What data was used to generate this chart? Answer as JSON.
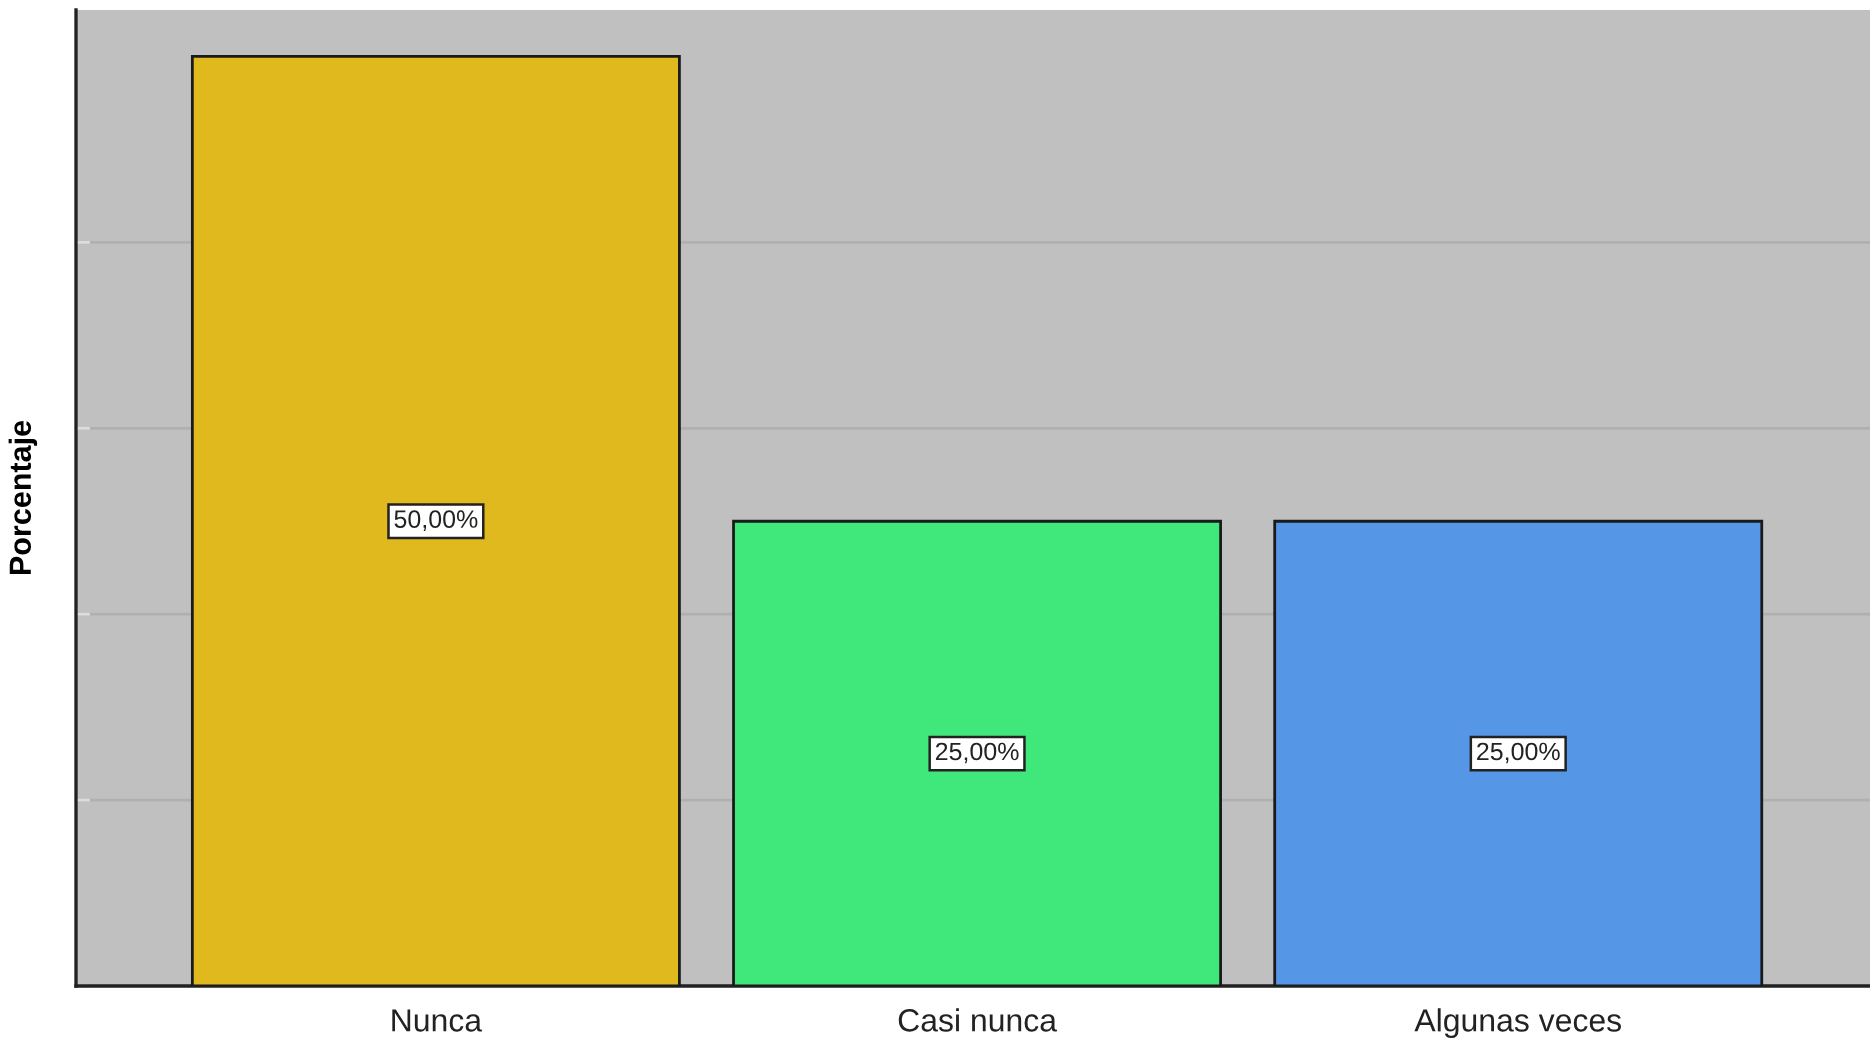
{
  "chart_data": {
    "type": "bar",
    "ylabel": "Porcentaje",
    "categories": [
      "Nunca",
      "Casi nunca",
      "Algunas veces"
    ],
    "values": [
      50,
      25,
      25
    ],
    "colors": [
      "#e0b91f",
      "#40e87c",
      "#5596e6"
    ],
    "value_labels": [
      "50,00%",
      "25,00%",
      "25,00%"
    ],
    "ylim": [
      0,
      52.5
    ],
    "yticks": [
      {
        "value": 0,
        "label": null
      },
      {
        "value": 10,
        "label": null
      },
      {
        "value": 20,
        "label": null
      },
      {
        "value": 30,
        "label": null
      },
      {
        "value": 40,
        "label": null
      }
    ],
    "grid": "y",
    "legend": false,
    "tick_labels": "x"
  }
}
